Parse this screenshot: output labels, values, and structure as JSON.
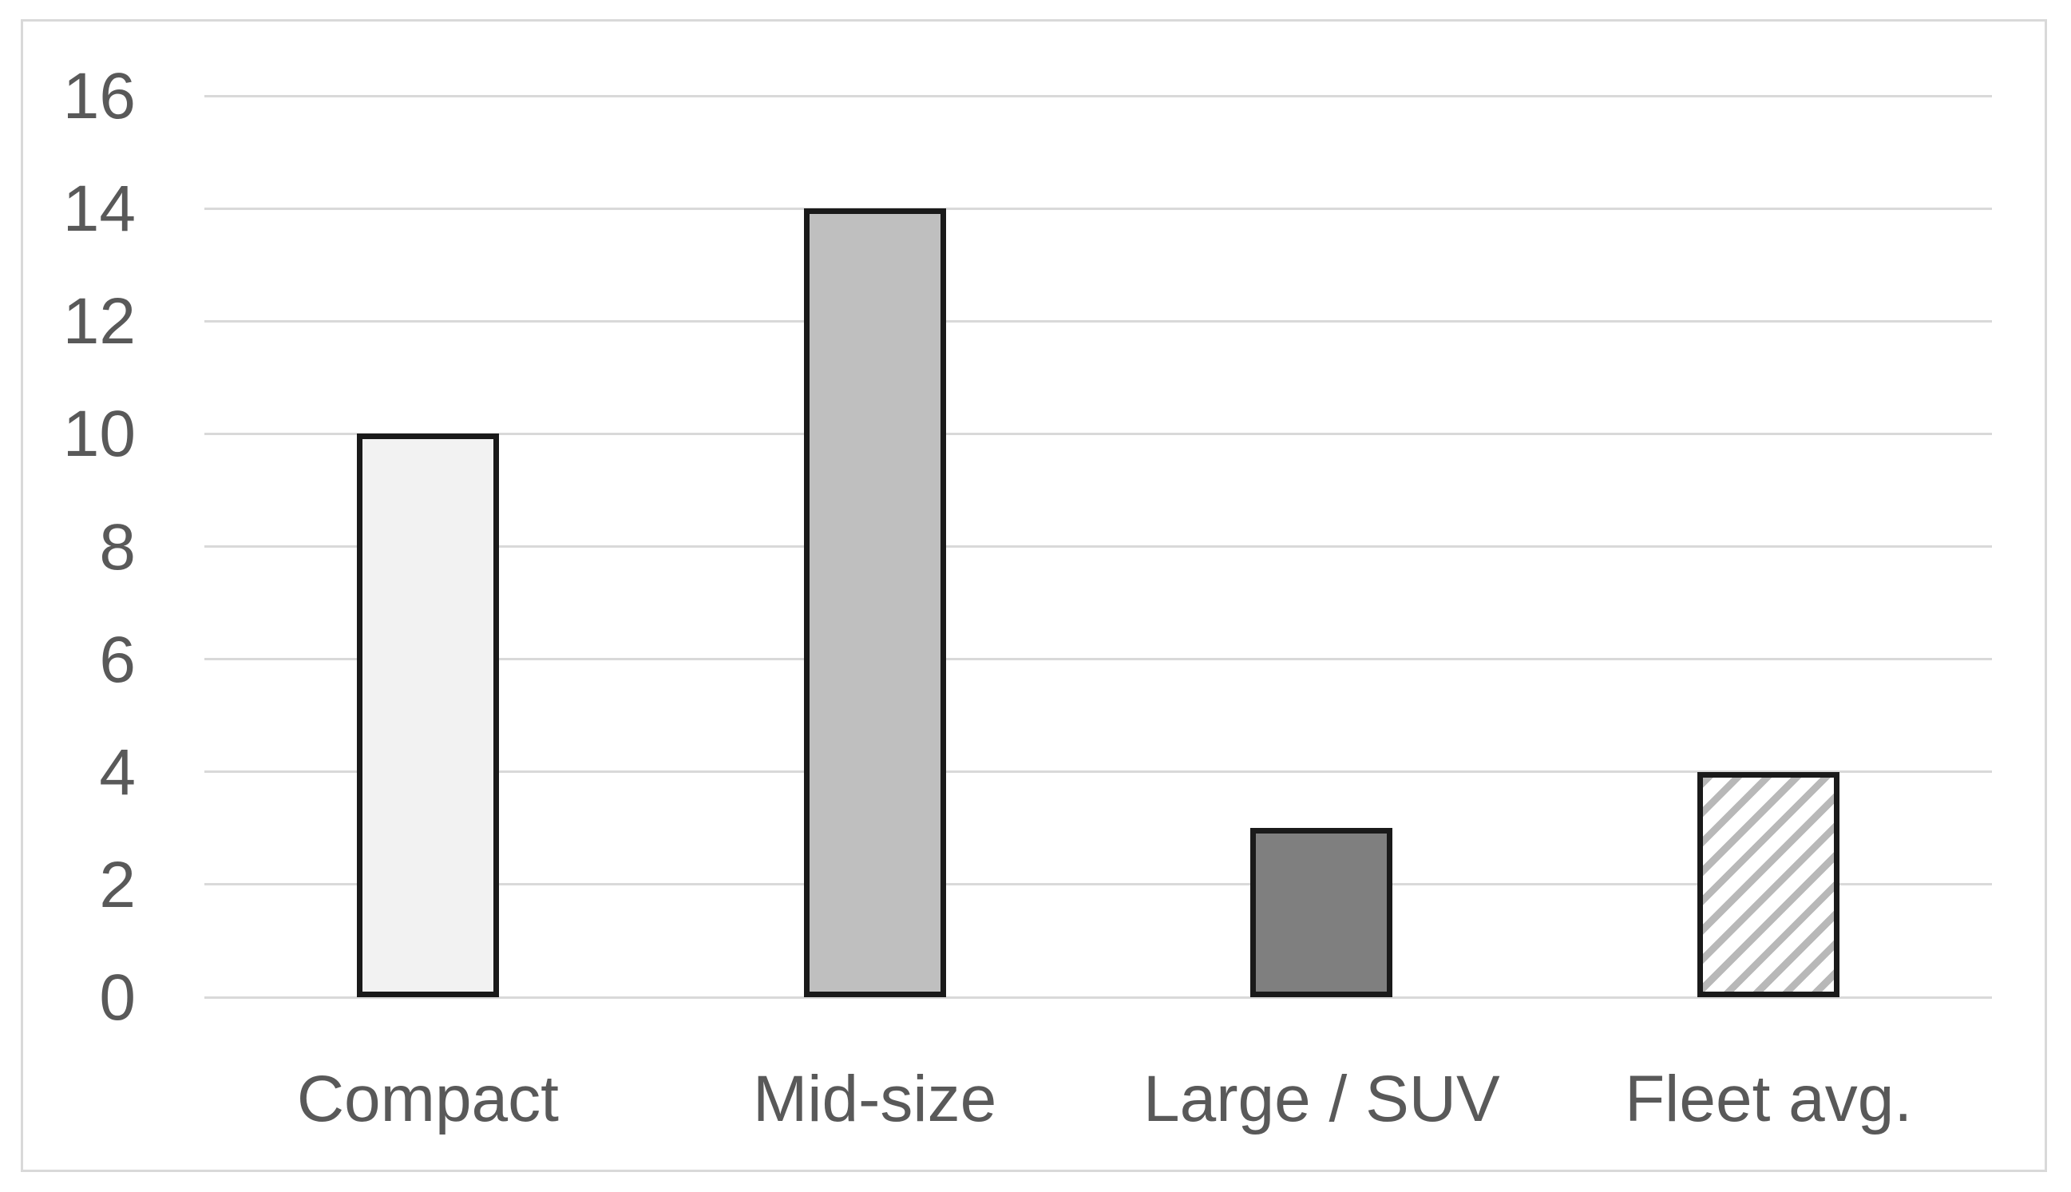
{
  "chart_data": {
    "type": "bar",
    "categories": [
      "Compact",
      "Mid-size",
      "Large / SUV",
      "Fleet avg."
    ],
    "values": [
      10,
      14,
      3,
      4
    ],
    "title": "",
    "xlabel": "",
    "ylabel": "",
    "ylim": [
      0,
      16
    ],
    "ytick_step": 2,
    "ytick_labels": [
      "0",
      "2",
      "4",
      "6",
      "8",
      "10",
      "12",
      "14",
      "16"
    ],
    "grid": true,
    "legend_position": "none",
    "bar_styles": [
      {
        "fill": "#f2f2f2",
        "pattern": "solid"
      },
      {
        "fill": "#bfbfbf",
        "pattern": "solid"
      },
      {
        "fill": "#7f7f7f",
        "pattern": "solid"
      },
      {
        "fill": "#ffffff",
        "pattern": "diagonal-hatch",
        "hatch_color": "#b8b8b8"
      }
    ],
    "colors": {
      "bar_border": "#1a1a1a",
      "gridline": "#d9d9d9",
      "axis_label": "#595959",
      "frame_border": "#d9d9d9",
      "background": "#ffffff"
    }
  }
}
